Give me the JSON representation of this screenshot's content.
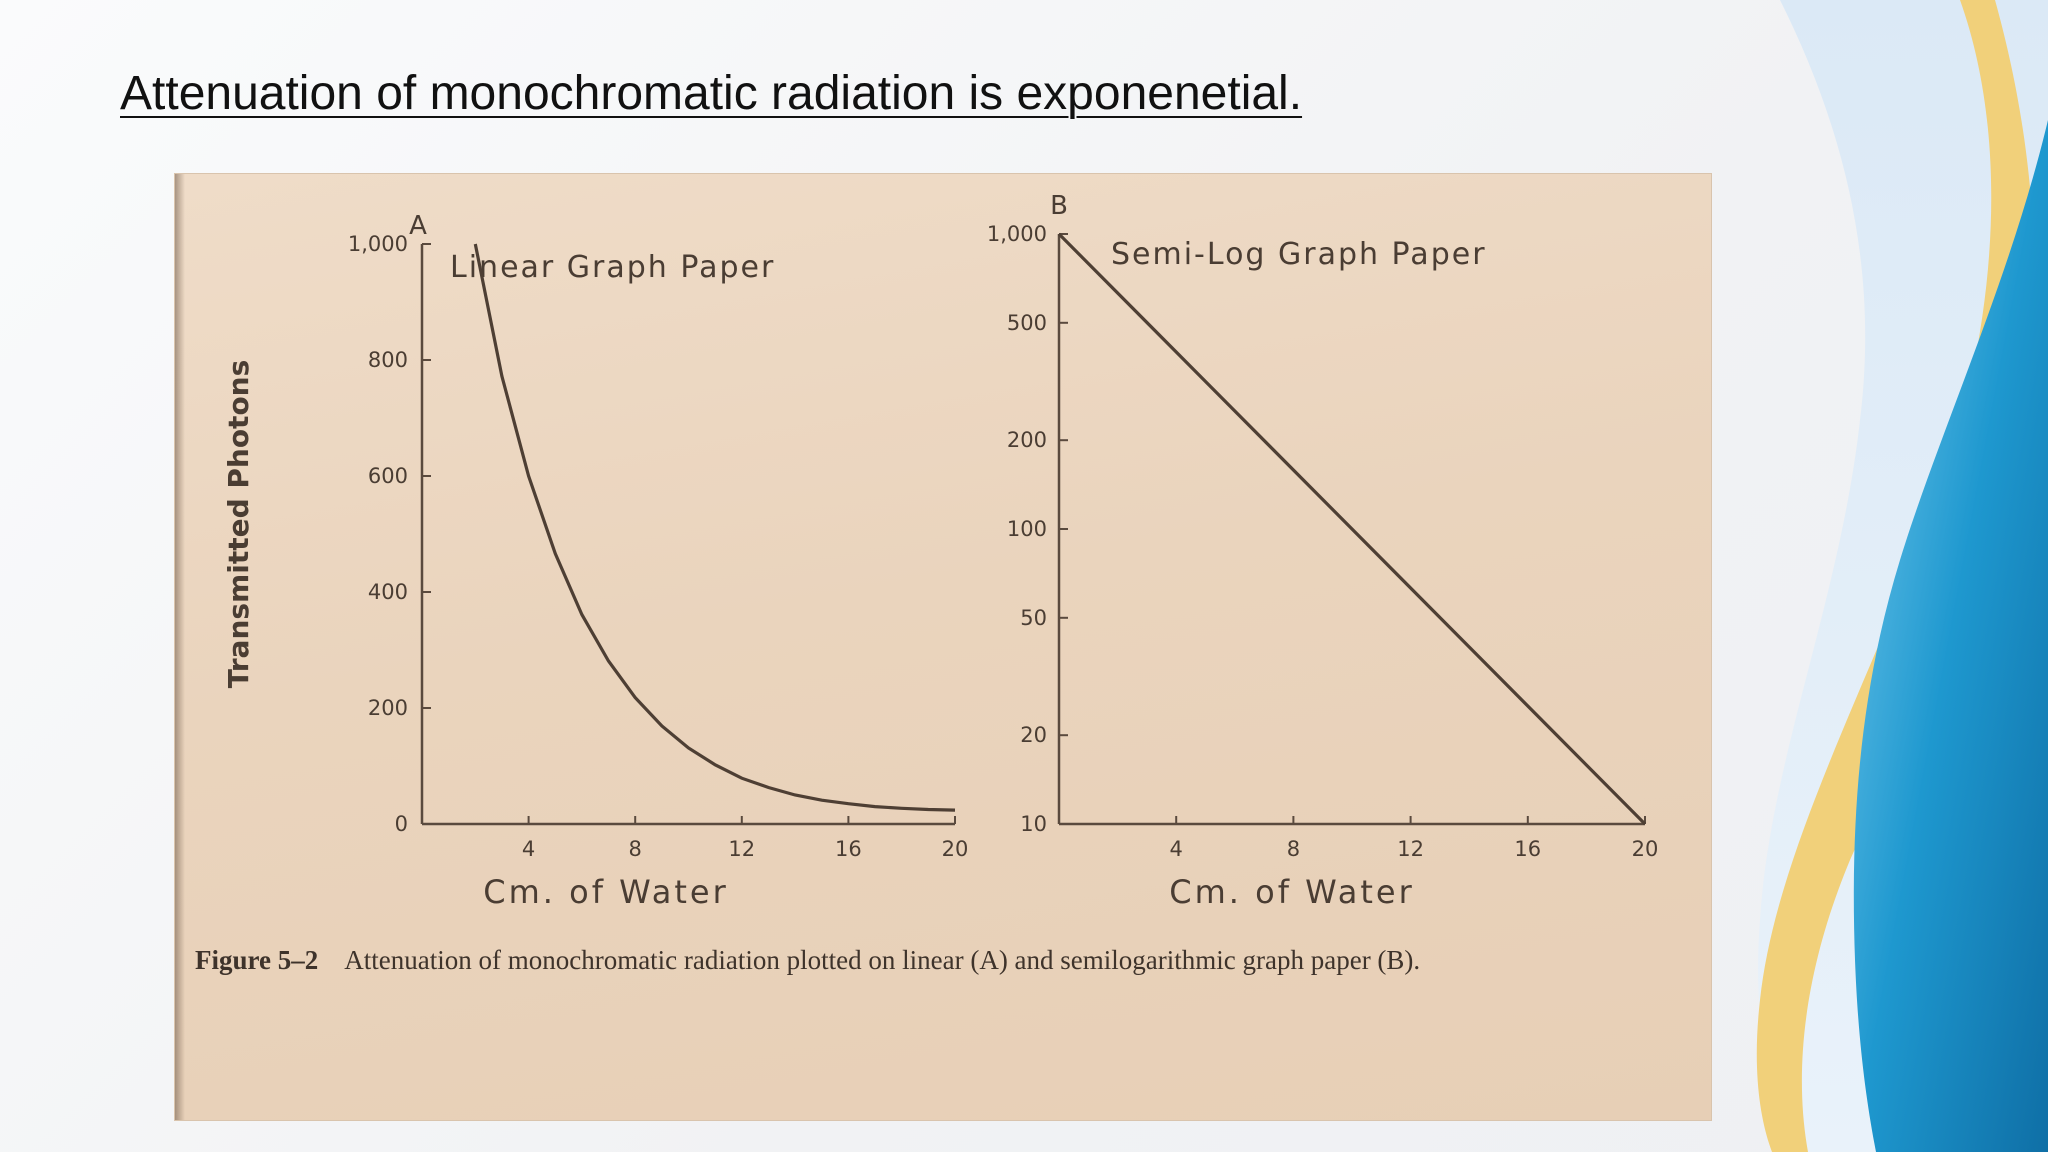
{
  "slide": {
    "title": "Attenuation of monochromatic radiation is exponenetial."
  },
  "colors": {
    "paper": "#ead4bd",
    "ink": "#4a3d33",
    "accent_yellow": "#f3d27a",
    "accent_blue": "#1a8ec6"
  },
  "figure": {
    "caption_label": "Figure 5–2",
    "caption_text": "Attenuation of monochromatic radiation plotted on linear (A) and semilogarithmic graph paper (B)."
  },
  "chart_data": [
    {
      "type": "line",
      "panel_letter": "A",
      "title": "Linear Graph Paper",
      "xlabel": "Cm. of Water",
      "ylabel": "Transmitted Photons",
      "xlim": [
        0,
        20
      ],
      "ylim": [
        0,
        1000
      ],
      "x_ticks": [
        "4",
        "8",
        "12",
        "16",
        "20"
      ],
      "x_tick_values": [
        4,
        8,
        12,
        16,
        20
      ],
      "y_ticks": [
        "0",
        "200",
        "400",
        "600",
        "800",
        "1,000"
      ],
      "y_tick_values": [
        0,
        200,
        400,
        600,
        800,
        1000
      ],
      "grid": false,
      "series": [
        {
          "x": [
            2,
            3,
            4,
            5,
            6,
            7,
            8,
            9,
            10,
            11,
            12,
            13,
            14,
            15,
            16,
            17,
            18,
            19,
            20
          ],
          "y": [
            1000,
            772,
            600,
            466,
            361,
            281,
            218,
            169,
            131,
            102,
            79,
            63,
            50,
            41,
            35,
            30,
            27,
            25,
            24
          ]
        }
      ]
    },
    {
      "type": "line",
      "panel_letter": "B",
      "title": "Semi-Log Graph Paper",
      "xlabel": "Cm. of Water",
      "y_scale": "log",
      "xlim": [
        0,
        20
      ],
      "ylim": [
        10,
        1000
      ],
      "x_ticks": [
        "4",
        "8",
        "12",
        "16",
        "20"
      ],
      "x_tick_values": [
        4,
        8,
        12,
        16,
        20
      ],
      "y_ticks": [
        "10",
        "20",
        "50",
        "100",
        "200",
        "500",
        "1,000"
      ],
      "y_tick_values": [
        10,
        20,
        50,
        100,
        200,
        500,
        1000
      ],
      "grid": false,
      "series": [
        {
          "x": [
            0,
            20
          ],
          "y": [
            1000,
            10
          ]
        }
      ]
    }
  ]
}
